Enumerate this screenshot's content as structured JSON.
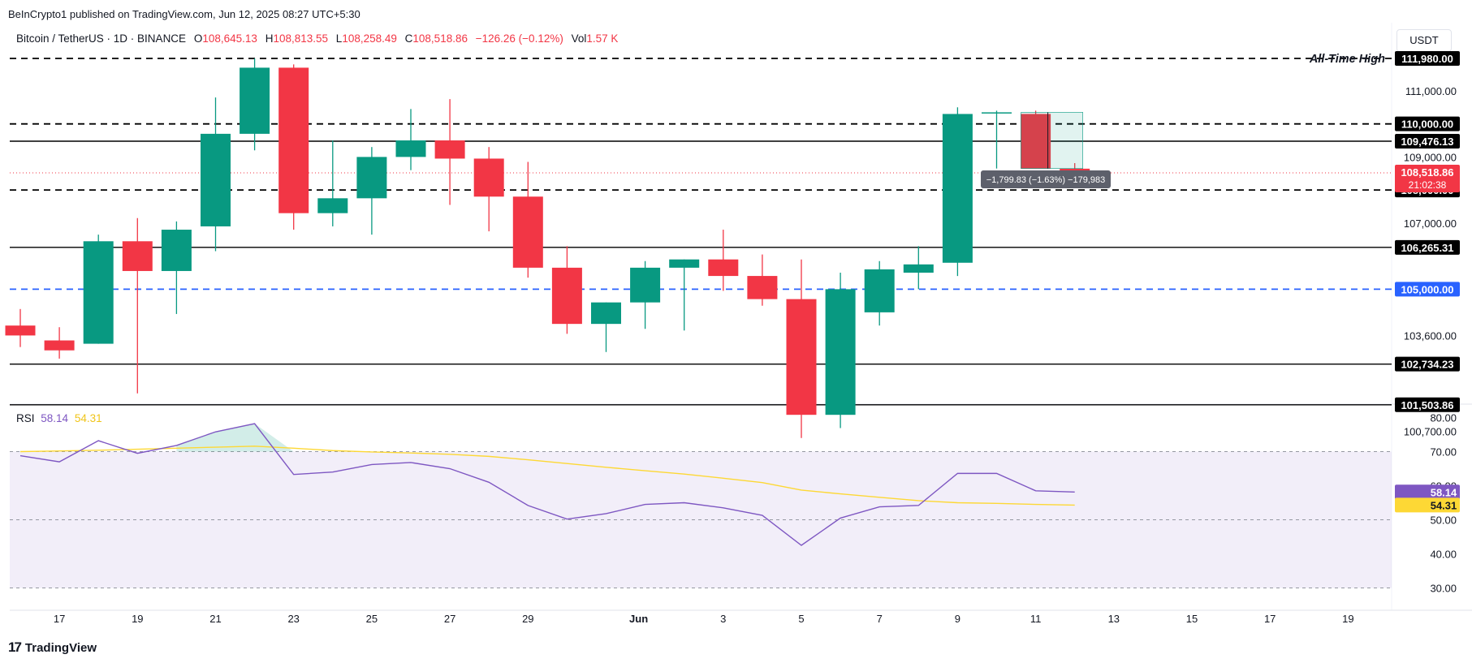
{
  "header": {
    "published": "BeInCrypto1 published on TradingView.com, Jun 12, 2025 08:27 UTC+5:30"
  },
  "legend": {
    "symbol": "Bitcoin / TetherUS · 1D · BINANCE",
    "o_label": "O",
    "o_value": "108,645.13",
    "h_label": "H",
    "h_value": "108,813.55",
    "l_label": "L",
    "l_value": "108,258.49",
    "c_label": "C",
    "c_value": "108,518.86",
    "change": "−126.26 (−0.12%)",
    "vol_label": "Vol",
    "vol_value": "1.57 K"
  },
  "currency": "USDT",
  "ath_label": "All-Time High",
  "measure_label": "−1,799.83 (−1.63%) −179,983",
  "rsi_legend": {
    "label": "RSI",
    "rsi": "58.14",
    "ma": "54.31"
  },
  "footer": {
    "brand": "TradingView",
    "logo": "17"
  },
  "colors": {
    "up": "#089981",
    "down": "#f23645",
    "rsi": "#7e57c2",
    "rsi_ma": "#fdd835",
    "blue_line": "#2962ff"
  },
  "chart_data": [
    {
      "type": "candlestick",
      "title": "Bitcoin / TetherUS · 1D · BINANCE",
      "currency": "USDT",
      "y_ticks": [
        "111,000.00",
        "109,000.00",
        "107,000.00",
        "103,600.00",
        "100,700.00"
      ],
      "x_ticks": [
        "17",
        "19",
        "21",
        "23",
        "25",
        "27",
        "29",
        "Jun",
        "3",
        "5",
        "7",
        "9",
        "11",
        "13",
        "15",
        "17",
        "19"
      ],
      "candles": [
        {
          "date": "May 16",
          "o": 103900,
          "h": 104400,
          "l": 103250,
          "c": 103600
        },
        {
          "date": "May 17",
          "o": 103450,
          "h": 103850,
          "l": 102900,
          "c": 103150
        },
        {
          "date": "May 18",
          "o": 103350,
          "h": 106650,
          "l": 103350,
          "c": 106450
        },
        {
          "date": "May 19",
          "o": 106450,
          "h": 107150,
          "l": 101850,
          "c": 105550
        },
        {
          "date": "May 20",
          "o": 105550,
          "h": 107050,
          "l": 104250,
          "c": 106800
        },
        {
          "date": "May 21",
          "o": 106900,
          "h": 110800,
          "l": 106150,
          "c": 109700
        },
        {
          "date": "May 22",
          "o": 109700,
          "h": 111980,
          "l": 109200,
          "c": 111700
        },
        {
          "date": "May 23",
          "o": 111700,
          "h": 111800,
          "l": 106800,
          "c": 107300
        },
        {
          "date": "May 24",
          "o": 107300,
          "h": 109500,
          "l": 106900,
          "c": 107750
        },
        {
          "date": "May 25",
          "o": 107750,
          "h": 109300,
          "l": 106650,
          "c": 109000
        },
        {
          "date": "May 26",
          "o": 109000,
          "h": 110450,
          "l": 108600,
          "c": 109500
        },
        {
          "date": "May 27",
          "o": 109500,
          "h": 110750,
          "l": 107550,
          "c": 108950
        },
        {
          "date": "May 28",
          "o": 108950,
          "h": 109300,
          "l": 106750,
          "c": 107800
        },
        {
          "date": "May 29",
          "o": 107800,
          "h": 108850,
          "l": 105350,
          "c": 105650
        },
        {
          "date": "May 30",
          "o": 105650,
          "h": 106300,
          "l": 103650,
          "c": 103950
        },
        {
          "date": "May 31",
          "o": 103950,
          "h": 104600,
          "l": 103100,
          "c": 104600
        },
        {
          "date": "Jun 1",
          "o": 104600,
          "h": 105850,
          "l": 103800,
          "c": 105650
        },
        {
          "date": "Jun 2",
          "o": 105650,
          "h": 105900,
          "l": 103750,
          "c": 105900
        },
        {
          "date": "Jun 3",
          "o": 105900,
          "h": 106800,
          "l": 104950,
          "c": 105400
        },
        {
          "date": "Jun 4",
          "o": 105400,
          "h": 106050,
          "l": 104500,
          "c": 104700
        },
        {
          "date": "Jun 5",
          "o": 104700,
          "h": 105900,
          "l": 100500,
          "c": 101200
        },
        {
          "date": "Jun 6",
          "o": 101200,
          "h": 105500,
          "l": 100800,
          "c": 105000
        },
        {
          "date": "Jun 7",
          "o": 104300,
          "h": 105850,
          "l": 103900,
          "c": 105600
        },
        {
          "date": "Jun 8",
          "o": 105500,
          "h": 106300,
          "l": 105000,
          "c": 105750
        },
        {
          "date": "Jun 9",
          "o": 105800,
          "h": 110500,
          "l": 105400,
          "c": 110300
        },
        {
          "date": "Jun 10",
          "o": 110350,
          "h": 110400,
          "l": 108650,
          "c": 110350
        },
        {
          "date": "Jun 11",
          "o": 110300,
          "h": 110400,
          "l": 108650,
          "c": 108650
        },
        {
          "date": "Jun 12",
          "o": 108645.13,
          "h": 108813.55,
          "l": 108258.49,
          "c": 108518.86
        }
      ],
      "levels": [
        {
          "value": 111980,
          "label": "111,980.00",
          "style": "dashed",
          "color": "#000000"
        },
        {
          "value": 110000,
          "label": "110,000.00",
          "style": "dashed",
          "color": "#000000"
        },
        {
          "value": 109476.13,
          "label": "109,476.13",
          "style": "solid",
          "color": "#000000"
        },
        {
          "value": 108000,
          "label": "108,000.00",
          "style": "dashed",
          "color": "#000000"
        },
        {
          "value": 106265.31,
          "label": "106,265.31",
          "style": "solid",
          "color": "#000000"
        },
        {
          "value": 105000,
          "label": "105,000.00",
          "style": "dashed",
          "color": "#2962ff"
        },
        {
          "value": 102734.23,
          "label": "102,734.23",
          "style": "solid",
          "color": "#000000"
        },
        {
          "value": 101503.86,
          "label": "101,503.86",
          "style": "solid",
          "color": "#000000"
        }
      ],
      "last_price": {
        "value": 108518.86,
        "label": "108,518.86",
        "countdown": "21:02:38"
      }
    },
    {
      "type": "line",
      "title": "RSI",
      "y_ticks": [
        "80.00",
        "70.00",
        "60.00",
        "50.00",
        "40.00",
        "30.00"
      ],
      "ylim": [
        27,
        85
      ],
      "bands": {
        "upper": 70,
        "middle": 50,
        "lower": 30
      },
      "series": [
        {
          "name": "RSI",
          "values": [
            68.8,
            67.0,
            73.2,
            69.5,
            71.8,
            75.8,
            78.2,
            63.3,
            64.0,
            66.2,
            66.8,
            65.0,
            61.0,
            54.2,
            50.2,
            51.8,
            54.5,
            55.0,
            53.5,
            51.3,
            42.5,
            50.5,
            53.8,
            54.2,
            63.6,
            63.6,
            58.5,
            58.14
          ]
        },
        {
          "name": "RSI MA",
          "values": [
            70.0,
            70.2,
            70.4,
            70.7,
            71.0,
            71.3,
            71.6,
            71.0,
            70.3,
            69.9,
            69.6,
            69.2,
            68.6,
            67.6,
            66.5,
            65.4,
            64.4,
            63.4,
            62.2,
            60.9,
            58.7,
            57.6,
            56.6,
            55.6,
            55.0,
            54.8,
            54.5,
            54.31
          ]
        }
      ],
      "last_values": [
        {
          "label": "58.14",
          "color": "#7e57c2"
        },
        {
          "label": "54.31",
          "color": "#fdd835"
        }
      ]
    }
  ]
}
